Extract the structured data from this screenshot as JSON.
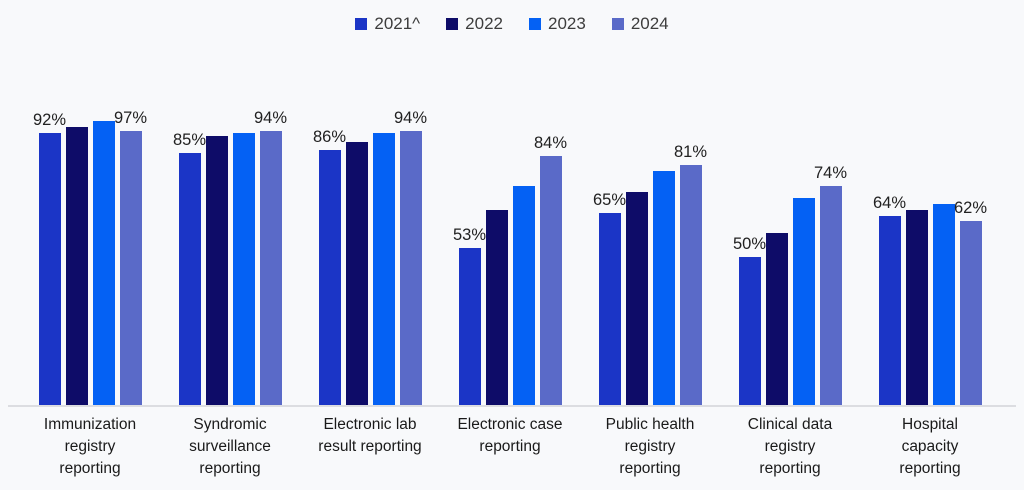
{
  "chart_data": {
    "type": "bar",
    "title": "",
    "xlabel": "",
    "ylabel": "",
    "ylim": [
      0,
      100
    ],
    "grid": false,
    "legend_position": "top",
    "label_suffix": "%",
    "categories": [
      "Immunization\nregistry\nreporting",
      "Syndromic\nsurveillance\nreporting",
      "Electronic lab\nresult reporting",
      "Electronic case\nreporting",
      "Public health\nregistry\nreporting",
      "Clinical data\nregistry\nreporting",
      "Hospital\ncapacity\nreporting"
    ],
    "series": [
      {
        "name": "2021^",
        "color": "#1B35C6",
        "show_labels": true,
        "values": [
          92,
          85,
          86,
          53,
          65,
          50,
          64
        ]
      },
      {
        "name": "2022",
        "color": "#0E0C68",
        "show_labels": false,
        "values": [
          94,
          91,
          89,
          66,
          72,
          58,
          66
        ]
      },
      {
        "name": "2023",
        "color": "#0461F4",
        "show_labels": false,
        "values": [
          96,
          92,
          92,
          74,
          79,
          70,
          68
        ]
      },
      {
        "name": "2024",
        "color": "#5A6AC8",
        "show_labels": true,
        "values": [
          97,
          94,
          94,
          84,
          81,
          74,
          62
        ]
      }
    ],
    "data_labels_shown_for_series": [
      "2021^",
      "2024"
    ],
    "visible_data_labels": [
      "92%",
      "97%",
      "85%",
      "94%",
      "86%",
      "94%",
      "53%",
      "84%",
      "65%",
      "81%",
      "50%",
      "74%",
      "64%",
      "62%"
    ]
  },
  "colors": {
    "background": "#F8F9FB",
    "axis_line": "#DCDDE1",
    "label_text": "#212121"
  }
}
